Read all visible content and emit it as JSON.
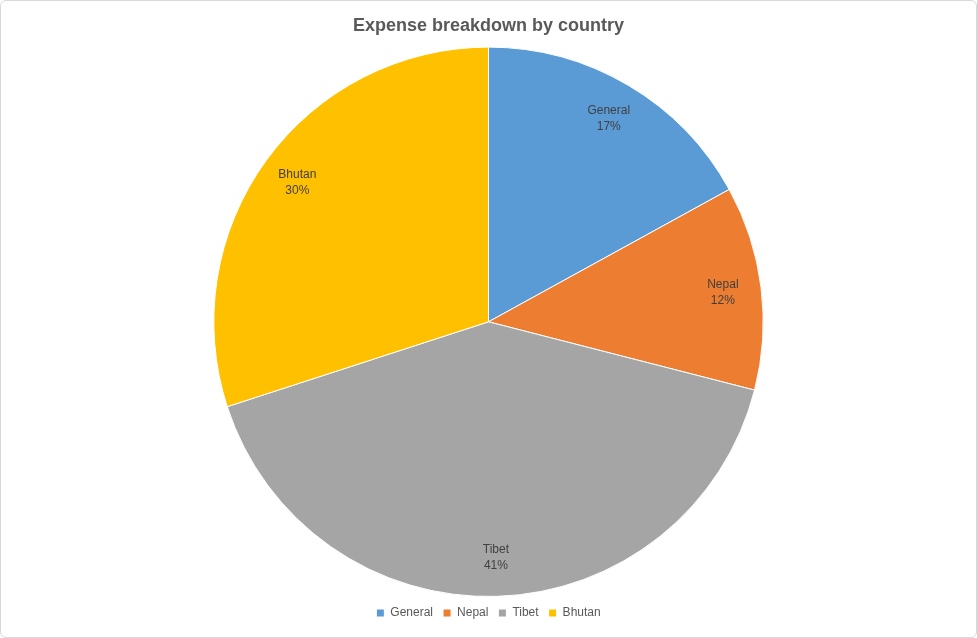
{
  "chart_data": {
    "type": "pie",
    "title": "Expense breakdown by country",
    "categories": [
      "General",
      "Nepal",
      "Tibet",
      "Bhutan"
    ],
    "values": [
      17,
      12,
      41,
      30
    ],
    "value_labels": [
      "17%",
      "12%",
      "41%",
      "30%"
    ],
    "colors": [
      "#5b9bd5",
      "#ed7d31",
      "#a5a5a5",
      "#ffc000"
    ],
    "legend": "bottom",
    "data_labels": true
  }
}
